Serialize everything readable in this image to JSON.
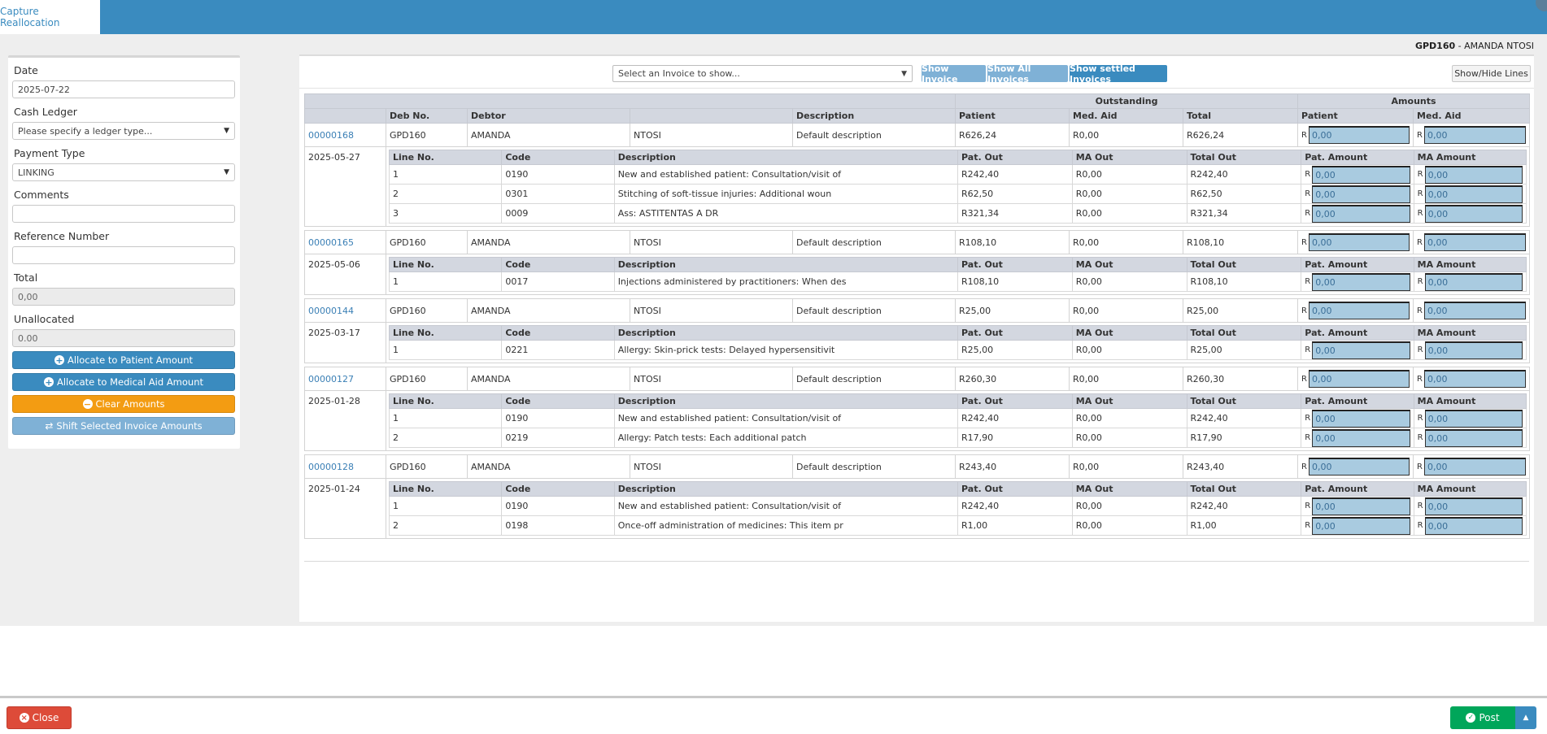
{
  "header": {
    "tab": "Capture Reallocation"
  },
  "patient": {
    "code": "GPD160",
    "sep": " - ",
    "name": "AMANDA NTOSI"
  },
  "form": {
    "date_label": "Date",
    "date_value": "2025-07-22",
    "ledger_label": "Cash Ledger",
    "ledger_value": "Please specify a ledger type...",
    "paytype_label": "Payment Type",
    "paytype_value": "LINKING",
    "comments_label": "Comments",
    "comments_value": "",
    "reference_label": "Reference Number",
    "reference_value": "",
    "total_label": "Total",
    "total_value": "0,00",
    "unalloc_label": "Unallocated",
    "unalloc_value": "0.00"
  },
  "actions": {
    "allocate_patient": "Allocate to Patient Amount",
    "allocate_medaid": "Allocate to Medical Aid Amount",
    "clear": "Clear Amounts",
    "shift": "Shift Selected Invoice Amounts"
  },
  "toolbar": {
    "select_placeholder": "Select an Invoice to show...",
    "show_invoice": "Show Invoice",
    "show_all": "Show All Invoices",
    "show_settled": "Show settled Invoices",
    "show_hide": "Show/Hide Lines"
  },
  "table": {
    "group_outstanding": "Outstanding",
    "group_amounts": "Amounts",
    "headers": [
      "Deb No.",
      "Debtor",
      "Description",
      "Patient",
      "Med. Aid",
      "Total",
      "Patient",
      "Med. Aid"
    ],
    "sub_headers": [
      "Line No.",
      "Code",
      "Description",
      "Pat. Out",
      "MA Out",
      "Total Out",
      "Pat. Amount",
      "MA Amount"
    ],
    "currency": "R",
    "invoices": [
      {
        "no": "00000168",
        "deb": "GPD160",
        "first": "AMANDA",
        "last": "NTOSI",
        "desc": "Default description",
        "patient": "R626,24",
        "medaid": "R0,00",
        "total": "R626,24",
        "pat_amt": "0,00",
        "ma_amt": "0,00",
        "date": "2025-05-27",
        "lines": [
          {
            "no": "1",
            "code": "0190",
            "desc": "New and established patient: Consultation/visit of",
            "pat": "R242,40",
            "ma": "R0,00",
            "tot": "R242,40",
            "pat_amt": "0,00",
            "ma_amt": "0,00"
          },
          {
            "no": "2",
            "code": "0301",
            "desc": "Stitching of soft-tissue injuries: Additional woun",
            "pat": "R62,50",
            "ma": "R0,00",
            "tot": "R62,50",
            "pat_amt": "0,00",
            "ma_amt": "0,00"
          },
          {
            "no": "3",
            "code": "0009",
            "desc": "Ass: ASTITENTAS A DR",
            "pat": "R321,34",
            "ma": "R0,00",
            "tot": "R321,34",
            "pat_amt": "0,00",
            "ma_amt": "0,00"
          }
        ]
      },
      {
        "no": "00000165",
        "deb": "GPD160",
        "first": "AMANDA",
        "last": "NTOSI",
        "desc": "Default description",
        "patient": "R108,10",
        "medaid": "R0,00",
        "total": "R108,10",
        "pat_amt": "0,00",
        "ma_amt": "0,00",
        "date": "2025-05-06",
        "lines": [
          {
            "no": "1",
            "code": "0017",
            "desc": "Injections administered by practitioners: When des",
            "pat": "R108,10",
            "ma": "R0,00",
            "tot": "R108,10",
            "pat_amt": "0,00",
            "ma_amt": "0,00"
          }
        ]
      },
      {
        "no": "00000144",
        "deb": "GPD160",
        "first": "AMANDA",
        "last": "NTOSI",
        "desc": "Default description",
        "patient": "R25,00",
        "medaid": "R0,00",
        "total": "R25,00",
        "pat_amt": "0,00",
        "ma_amt": "0,00",
        "date": "2025-03-17",
        "lines": [
          {
            "no": "1",
            "code": "0221",
            "desc": "Allergy: Skin-prick tests: Delayed hypersensitivit",
            "pat": "R25,00",
            "ma": "R0,00",
            "tot": "R25,00",
            "pat_amt": "0,00",
            "ma_amt": "0,00"
          }
        ]
      },
      {
        "no": "00000127",
        "deb": "GPD160",
        "first": "AMANDA",
        "last": "NTOSI",
        "desc": "Default description",
        "patient": "R260,30",
        "medaid": "R0,00",
        "total": "R260,30",
        "pat_amt": "0,00",
        "ma_amt": "0,00",
        "date": "2025-01-28",
        "lines": [
          {
            "no": "1",
            "code": "0190",
            "desc": "New and established patient: Consultation/visit of",
            "pat": "R242,40",
            "ma": "R0,00",
            "tot": "R242,40",
            "pat_amt": "0,00",
            "ma_amt": "0,00"
          },
          {
            "no": "2",
            "code": "0219",
            "desc": "Allergy: Patch tests: Each additional patch",
            "pat": "R17,90",
            "ma": "R0,00",
            "tot": "R17,90",
            "pat_amt": "0,00",
            "ma_amt": "0,00"
          }
        ]
      },
      {
        "no": "00000128",
        "deb": "GPD160",
        "first": "AMANDA",
        "last": "NTOSI",
        "desc": "Default description",
        "patient": "R243,40",
        "medaid": "R0,00",
        "total": "R243,40",
        "pat_amt": "0,00",
        "ma_amt": "0,00",
        "date": "2025-01-24",
        "lines": [
          {
            "no": "1",
            "code": "0190",
            "desc": "New and established patient: Consultation/visit of",
            "pat": "R242,40",
            "ma": "R0,00",
            "tot": "R242,40",
            "pat_amt": "0,00",
            "ma_amt": "0,00"
          },
          {
            "no": "2",
            "code": "0198",
            "desc": "Once-off administration of medicines: This item pr",
            "pat": "R1,00",
            "ma": "R0,00",
            "tot": "R1,00",
            "pat_amt": "0,00",
            "ma_amt": "0,00"
          }
        ]
      }
    ]
  },
  "footer": {
    "close": "Close",
    "post": "Post"
  },
  "icons": {
    "plus": "plus-circle-icon",
    "exchange": "exchange-icon",
    "close": "times-circle-icon",
    "check": "check-circle-icon",
    "caret": "caret-up-icon"
  }
}
